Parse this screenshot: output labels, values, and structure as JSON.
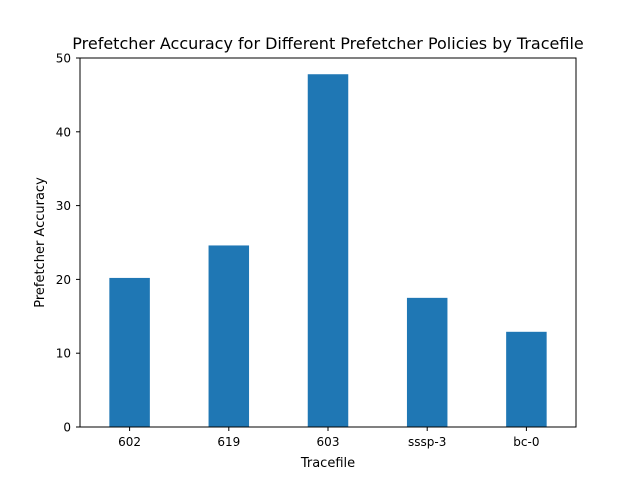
{
  "chart_data": {
    "type": "bar",
    "title": "Prefetcher Accuracy for Different Prefetcher Policies by Tracefile",
    "xlabel": "Tracefile",
    "ylabel": "Prefetcher Accuracy",
    "categories": [
      "602",
      "619",
      "603",
      "sssp-3",
      "bc-0"
    ],
    "values": [
      20.2,
      24.6,
      47.8,
      17.5,
      12.9
    ],
    "ylim": [
      0,
      50
    ],
    "yticks": [
      0,
      10,
      20,
      30,
      40,
      50
    ],
    "bar_color": "#1f77b4",
    "grid": false,
    "legend": false
  }
}
